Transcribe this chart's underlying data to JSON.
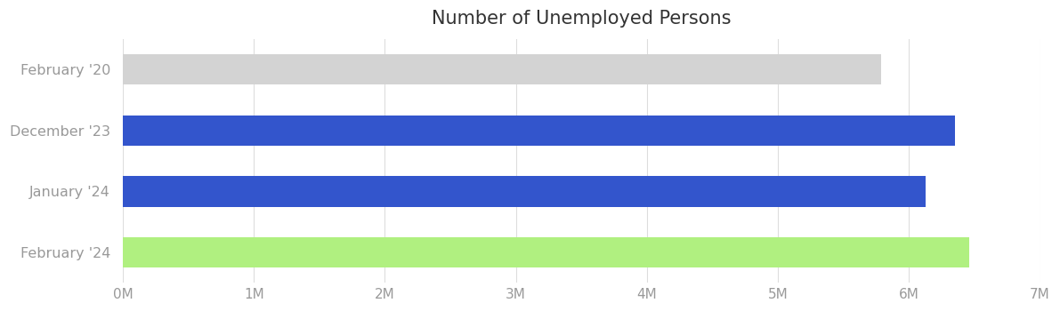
{
  "title": "Number of Unemployed Persons",
  "categories": [
    "February '20",
    "December '23",
    "January '24",
    "February '24"
  ],
  "values": [
    5787000,
    6350000,
    6124000,
    6458000
  ],
  "bar_colors": [
    "#d3d3d3",
    "#3355cc",
    "#3355cc",
    "#b0f080"
  ],
  "xlim": [
    0,
    7000000
  ],
  "xtick_values": [
    0,
    1000000,
    2000000,
    3000000,
    4000000,
    5000000,
    6000000,
    7000000
  ],
  "xtick_labels": [
    "0M",
    "1M",
    "2M",
    "3M",
    "4M",
    "5M",
    "6M",
    "7M"
  ],
  "title_fontsize": 15,
  "title_color": "#333333",
  "tick_color": "#999999",
  "grid_color": "#dddddd",
  "background_color": "#ffffff",
  "bar_height": 0.5,
  "figsize": [
    11.91,
    3.5
  ],
  "dpi": 100
}
